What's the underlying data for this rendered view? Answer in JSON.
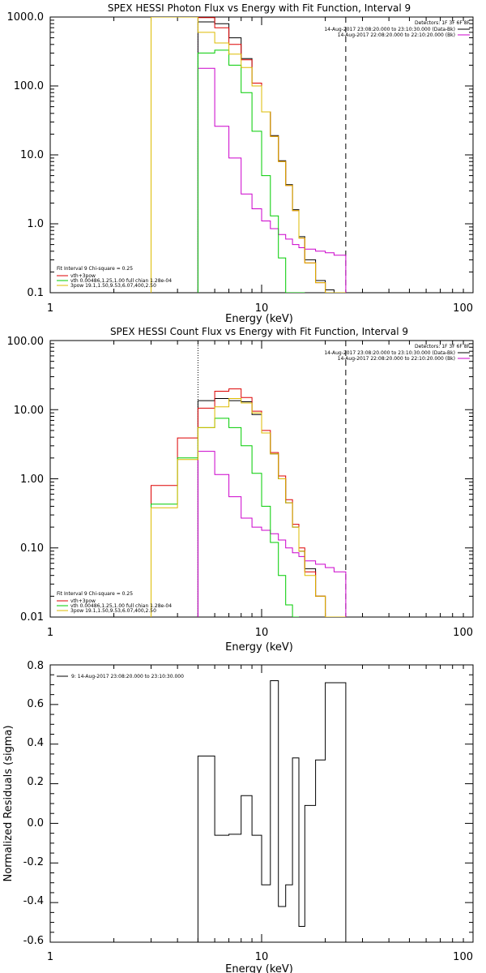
{
  "chart_data": [
    {
      "type": "line",
      "title": "SPEX HESSI Photon Flux vs Energy with Fit Function, Interval 9",
      "xlabel": "Energy  (keV)",
      "ylabel": "",
      "xscale": "log",
      "yscale": "log",
      "xlim": [
        1,
        100
      ],
      "ylim": [
        0.1,
        1000
      ],
      "xtick_labels": [
        "1",
        "10",
        "100"
      ],
      "ytick_labels": [
        "1000.0",
        "100.0",
        "10.0",
        "1.0",
        "0.1"
      ],
      "ytick_values": [
        1000,
        100,
        10,
        1,
        0.1
      ],
      "vlines": [
        {
          "x": 5.0,
          "style": "dotted",
          "color": "#cc00cc"
        },
        {
          "x": 25.0,
          "style": "dashed",
          "color": "#000000"
        }
      ],
      "legend_top": [
        "Detectors: 1F 3F 6F 8F",
        "14-Aug-2017 23:08:20.000 to 23:10:30.000 (Data-Bk)",
        "14-Aug-2017 22:08:20.000 to 22:10:20.000 (Bk)"
      ],
      "legend_top_colors": [
        "",
        "#000000",
        "#cc00cc"
      ],
      "fit_header": "Fit Interval 9   Chi-square = 0.25",
      "fit_legend": [
        {
          "label": "vth+3pow",
          "color": "#dd0000"
        },
        {
          "label": "vth 0.00486,1.25,1.00  full chian 1.28e-04",
          "color": "#00cc00"
        },
        {
          "label": "3pow 19.1,1.50,9.53,6.07,400,2.50",
          "color": "#ddbb00"
        }
      ],
      "edges": [
        3.0,
        4.0,
        5.0,
        6.0,
        7.0,
        8.0,
        9.0,
        10.0,
        11.0,
        12.0,
        13.0,
        14.0,
        15.0,
        16.0,
        18.0,
        20.0,
        22.0,
        25.0
      ],
      "series": [
        {
          "name": "Data-Bk",
          "color": "#000000",
          "start": 2,
          "values": [
            850,
            800,
            500,
            250,
            110,
            42,
            19,
            8.2,
            3.7,
            1.6,
            0.65,
            0.3,
            0.15,
            0.11,
            0.1
          ]
        },
        {
          "name": "Bk",
          "color": "#cc00cc",
          "start": 2,
          "values": [
            180,
            26,
            9,
            2.7,
            1.65,
            1.1,
            0.85,
            0.7,
            0.6,
            0.5,
            0.45,
            0.43,
            0.4,
            0.38,
            0.35
          ]
        },
        {
          "name": "vth+3pow",
          "color": "#dd0000",
          "start": 0,
          "values": [
            1000,
            1000,
            980,
            700,
            400,
            240,
            110,
            42,
            18.5,
            8.0,
            3.6,
            1.55,
            0.62,
            0.27,
            0.14,
            0.1,
            0.1
          ]
        },
        {
          "name": "vth",
          "color": "#00cc00",
          "start": 2,
          "values": [
            300,
            330,
            200,
            80,
            22,
            5,
            1.3,
            0.32,
            0.1,
            0.1,
            0.1
          ]
        },
        {
          "name": "3pow",
          "color": "#ddbb00",
          "start": 0,
          "values": [
            1000,
            1000,
            600,
            420,
            290,
            185,
            100,
            42,
            18.5,
            8.0,
            3.6,
            1.55,
            0.62,
            0.27,
            0.14,
            0.1,
            0.1
          ]
        }
      ]
    },
    {
      "type": "line",
      "title": "SPEX HESSI Count Flux vs Energy with Fit Function, Interval 9",
      "xlabel": "Energy  (keV)",
      "ylabel": "",
      "xscale": "log",
      "yscale": "log",
      "xlim": [
        1,
        100
      ],
      "ylim": [
        0.01,
        100
      ],
      "xtick_labels": [
        "1",
        "10",
        "100"
      ],
      "ytick_labels": [
        "100.00",
        "10.00",
        "1.00",
        "0.10",
        "0.01"
      ],
      "ytick_values": [
        100,
        10,
        1,
        0.1,
        0.01
      ],
      "vlines": [
        {
          "x": 5.0,
          "style": "dotted",
          "color": "#000000"
        },
        {
          "x": 25.0,
          "style": "dashed",
          "color": "#000000"
        }
      ],
      "legend_top": [
        "Detectors: 1F 3F 6F 8F",
        "14-Aug-2017 23:08:20.000 to 23:10:30.000 (Data-Bk)",
        "14-Aug-2017 22:08:20.000 to 22:10:20.000 (Bk)"
      ],
      "legend_top_colors": [
        "",
        "#000000",
        "#cc00cc"
      ],
      "fit_header": "Fit Interval 9   Chi-square = 0.25",
      "fit_legend": [
        {
          "label": "vth+3pow",
          "color": "#dd0000"
        },
        {
          "label": "vth 0.00486,1.25,1.00  full chian 1.28e-04",
          "color": "#00cc00"
        },
        {
          "label": "3pow 19.1,1.50,9.53,6.07,400,2.50",
          "color": "#ddbb00"
        }
      ],
      "edges": [
        3.0,
        4.0,
        5.0,
        6.0,
        7.0,
        8.0,
        9.0,
        10.0,
        11.0,
        12.0,
        13.0,
        14.0,
        15.0,
        16.0,
        18.0,
        20.0,
        22.0,
        25.0
      ],
      "series": [
        {
          "name": "Data-Bk",
          "color": "#000000",
          "start": 2,
          "values": [
            13.5,
            14.5,
            13.5,
            13,
            8.5,
            4.6,
            2.3,
            1.0,
            0.45,
            0.2,
            0.09,
            0.05,
            0.02,
            0.01,
            0.01
          ]
        },
        {
          "name": "Bk",
          "color": "#cc00cc",
          "start": 2,
          "values": [
            2.5,
            1.15,
            0.55,
            0.27,
            0.2,
            0.18,
            0.16,
            0.13,
            0.1,
            0.085,
            0.075,
            0.065,
            0.058,
            0.052,
            0.045
          ]
        },
        {
          "name": "vth+3pow",
          "color": "#dd0000",
          "start": 0,
          "values": [
            0.8,
            3.9,
            10.5,
            18.5,
            20,
            15,
            9.5,
            5,
            2.4,
            1.1,
            0.5,
            0.22,
            0.1,
            0.045,
            0.02,
            0.01,
            0.01
          ]
        },
        {
          "name": "vth",
          "color": "#00cc00",
          "start": 0,
          "values": [
            0.43,
            2.0,
            5.5,
            7.5,
            5.5,
            3.0,
            1.2,
            0.4,
            0.12,
            0.04,
            0.015,
            0.01
          ]
        },
        {
          "name": "3pow",
          "color": "#ddbb00",
          "start": 0,
          "values": [
            0.38,
            1.9,
            5.5,
            11,
            14.5,
            12.5,
            9,
            4.6,
            2.3,
            1.0,
            0.45,
            0.2,
            0.09,
            0.04,
            0.02,
            0.01,
            0.01
          ]
        }
      ]
    },
    {
      "type": "line",
      "title": "",
      "xlabel": "Energy  (keV)",
      "ylabel": "Normalized Residuals  (sigma)",
      "xscale": "log",
      "yscale": "linear",
      "xlim": [
        1,
        100
      ],
      "ylim": [
        -0.6,
        0.8
      ],
      "xtick_labels": [
        "1",
        "10",
        "100"
      ],
      "ytick_labels": [
        "0.8",
        "0.6",
        "0.4",
        "0.2",
        "0.0",
        "-0.2",
        "-0.4",
        "-0.6"
      ],
      "ytick_values": [
        0.8,
        0.6,
        0.4,
        0.2,
        0.0,
        -0.2,
        -0.4,
        -0.6
      ],
      "legend_entry": "9: 14-Aug-2017 23:08:20.000 to 23:10:30.000",
      "edges": [
        5.0,
        6.0,
        7.0,
        8.0,
        9.0,
        10.0,
        11.0,
        12.0,
        13.0,
        14.0,
        15.0,
        16.0,
        18.0,
        20.0,
        22.0,
        25.0
      ],
      "series": [
        {
          "name": "9: 14-Aug-2017 23:08:20.000 to 23:10:30.000",
          "color": "#000000",
          "start": 0,
          "values": [
            0.34,
            -0.06,
            -0.055,
            0.14,
            -0.06,
            -0.31,
            0.72,
            -0.42,
            -0.31,
            0.33,
            -0.52,
            0.09,
            0.32,
            0.71,
            0.71
          ]
        }
      ]
    }
  ]
}
